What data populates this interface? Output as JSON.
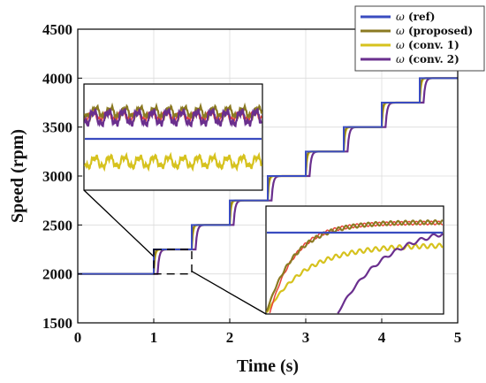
{
  "chart_data": {
    "type": "line",
    "xlabel": "Time (s)",
    "ylabel": "Speed (rpm)",
    "xlim": [
      0,
      5
    ],
    "ylim": [
      1500,
      4500
    ],
    "xticks": [
      "0",
      "1",
      "2",
      "3",
      "4",
      "5"
    ],
    "yticks": [
      "1500",
      "2000",
      "2500",
      "3000",
      "3500",
      "4000",
      "4500"
    ],
    "grid": true,
    "legend_position": "top-right",
    "reference_profile": {
      "x": [
        0,
        1,
        1.5,
        2,
        2.5,
        3,
        3.5,
        4,
        4.5,
        5
      ],
      "y": [
        2000,
        2250,
        2500,
        2750,
        3000,
        3250,
        3500,
        3750,
        4000,
        4000
      ]
    },
    "series": [
      {
        "name": "ω (ref)",
        "symbol": "ω",
        "label": "(ref)",
        "color": "#3a4cc0"
      },
      {
        "name": "ω (proposed)",
        "symbol": "ω",
        "label": "(proposed)",
        "color": "#8b7a22"
      },
      {
        "name": "ω (conv. 1)",
        "symbol": "ω",
        "label": "(conv. 1)",
        "color": "#d6c21e"
      },
      {
        "name": "ω (conv. 2)",
        "symbol": "ω",
        "label": "(conv. 2)",
        "color": "#6a2f8e"
      }
    ],
    "insets": [
      {
        "name": "steady-state zoom",
        "region_x": [
          1.0,
          1.5
        ],
        "region_y": [
          2000,
          2250
        ]
      },
      {
        "name": "transient zoom",
        "region_x": [
          1.0,
          1.5
        ],
        "region_y": [
          2000,
          2250
        ]
      }
    ]
  },
  "colors": {
    "ref": "#3a4cc0",
    "proposed": "#8b7a22",
    "conv1": "#d6c21e",
    "conv2": "#6a2f8e",
    "ripple_highlight": "#e8433a"
  }
}
